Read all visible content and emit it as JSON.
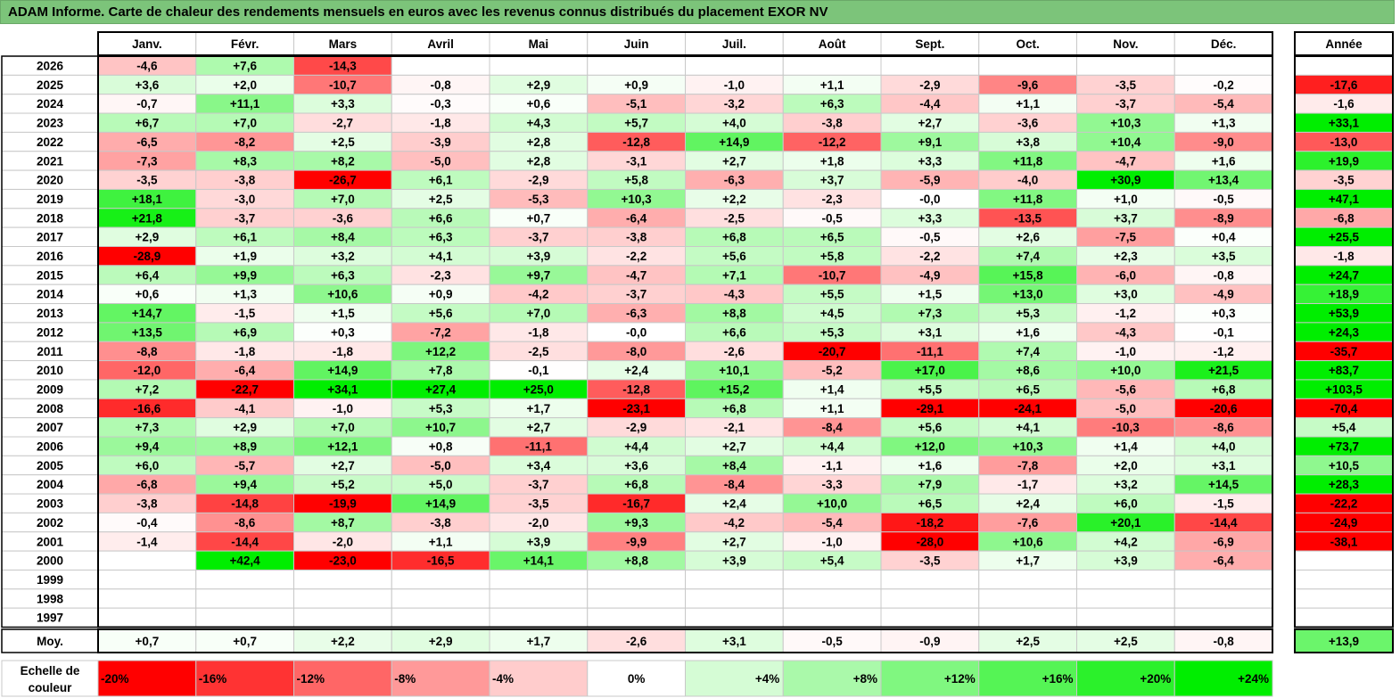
{
  "title": "ADAM Informe. Carte de chaleur des rendements mensuels en euros avec les revenus connus distribués du placement EXOR NV",
  "chart_data": {
    "type": "heatmap",
    "title": "ADAM Informe. Carte de chaleur des rendements mensuels en euros avec les revenus connus distribués du placement EXOR NV",
    "months": [
      "Janv.",
      "Févr.",
      "Mars",
      "Avril",
      "Mai",
      "Juin",
      "Juil.",
      "Août",
      "Sept.",
      "Oct.",
      "Nov.",
      "Déc."
    ],
    "year_header": "Année",
    "avg_label": "Moy.",
    "rows": [
      {
        "year": "2026",
        "values": [
          "-4,6",
          "+7,6",
          "-14,3",
          "",
          "",
          "",
          "",
          "",
          "",
          "",
          "",
          ""
        ],
        "annual": ""
      },
      {
        "year": "2025",
        "values": [
          "+3,6",
          "+2,0",
          "-10,7",
          "-0,8",
          "+2,9",
          "+0,9",
          "-1,0",
          "+1,1",
          "-2,9",
          "-9,6",
          "-3,5",
          "-0,2"
        ],
        "annual": "-17,6"
      },
      {
        "year": "2024",
        "values": [
          "-0,7",
          "+11,1",
          "+3,3",
          "-0,3",
          "+0,6",
          "-5,1",
          "-3,2",
          "+6,3",
          "-4,4",
          "+1,1",
          "-3,7",
          "-5,4"
        ],
        "annual": "-1,6"
      },
      {
        "year": "2023",
        "values": [
          "+6,7",
          "+7,0",
          "-2,7",
          "-1,8",
          "+4,3",
          "+5,7",
          "+4,0",
          "-3,8",
          "+2,7",
          "-3,6",
          "+10,3",
          "+1,3"
        ],
        "annual": "+33,1"
      },
      {
        "year": "2022",
        "values": [
          "-6,5",
          "-8,2",
          "+2,5",
          "-3,9",
          "+2,8",
          "-12,8",
          "+14,9",
          "-12,2",
          "+9,1",
          "+3,8",
          "+10,4",
          "-9,0"
        ],
        "annual": "-13,0"
      },
      {
        "year": "2021",
        "values": [
          "-7,3",
          "+8,3",
          "+8,2",
          "-5,0",
          "+2,8",
          "-3,1",
          "+2,7",
          "+1,8",
          "+3,3",
          "+11,8",
          "-4,7",
          "+1,6"
        ],
        "annual": "+19,9"
      },
      {
        "year": "2020",
        "values": [
          "-3,5",
          "-3,8",
          "-26,7",
          "+6,1",
          "-2,9",
          "+5,8",
          "-6,3",
          "+3,7",
          "-5,9",
          "-4,0",
          "+30,9",
          "+13,4"
        ],
        "annual": "-3,5"
      },
      {
        "year": "2019",
        "values": [
          "+18,1",
          "-3,0",
          "+7,0",
          "+2,5",
          "-5,3",
          "+10,3",
          "+2,2",
          "-2,3",
          "-0,0",
          "+11,8",
          "+1,0",
          "-0,5"
        ],
        "annual": "+47,1"
      },
      {
        "year": "2018",
        "values": [
          "+21,8",
          "-3,7",
          "-3,6",
          "+6,6",
          "+0,7",
          "-6,4",
          "-2,5",
          "-0,5",
          "+3,3",
          "-13,5",
          "+3,7",
          "-8,9"
        ],
        "annual": "-6,8"
      },
      {
        "year": "2017",
        "values": [
          "+2,9",
          "+6,1",
          "+8,4",
          "+6,3",
          "-3,7",
          "-3,8",
          "+6,8",
          "+6,5",
          "-0,5",
          "+2,6",
          "-7,5",
          "+0,4"
        ],
        "annual": "+25,5"
      },
      {
        "year": "2016",
        "values": [
          "-28,9",
          "+1,9",
          "+3,2",
          "+4,1",
          "+3,9",
          "-2,2",
          "+5,6",
          "+5,8",
          "-2,2",
          "+7,4",
          "+2,3",
          "+3,5"
        ],
        "annual": "-1,8"
      },
      {
        "year": "2015",
        "values": [
          "+6,4",
          "+9,9",
          "+6,3",
          "-2,3",
          "+9,7",
          "-4,7",
          "+7,1",
          "-10,7",
          "-4,9",
          "+15,8",
          "-6,0",
          "-0,8"
        ],
        "annual": "+24,7"
      },
      {
        "year": "2014",
        "values": [
          "+0,6",
          "+1,3",
          "+10,6",
          "+0,9",
          "-4,2",
          "-3,7",
          "-4,3",
          "+5,5",
          "+1,5",
          "+13,0",
          "+3,0",
          "-4,9"
        ],
        "annual": "+18,9"
      },
      {
        "year": "2013",
        "values": [
          "+14,7",
          "-1,5",
          "+1,5",
          "+5,6",
          "+7,0",
          "-6,3",
          "+8,8",
          "+4,5",
          "+7,3",
          "+5,3",
          "-1,2",
          "+0,3"
        ],
        "annual": "+53,9"
      },
      {
        "year": "2012",
        "values": [
          "+13,5",
          "+6,9",
          "+0,3",
          "-7,2",
          "-1,8",
          "-0,0",
          "+6,6",
          "+5,3",
          "+3,1",
          "+1,6",
          "-4,3",
          "-0,1"
        ],
        "annual": "+24,3"
      },
      {
        "year": "2011",
        "values": [
          "-8,8",
          "-1,8",
          "-1,8",
          "+12,2",
          "-2,5",
          "-8,0",
          "-2,6",
          "-20,7",
          "-11,1",
          "+7,4",
          "-1,0",
          "-1,2"
        ],
        "annual": "-35,7"
      },
      {
        "year": "2010",
        "values": [
          "-12,0",
          "-6,4",
          "+14,9",
          "+7,8",
          "-0,1",
          "+2,4",
          "+10,1",
          "-5,2",
          "+17,0",
          "+8,6",
          "+10,0",
          "+21,5"
        ],
        "annual": "+83,7"
      },
      {
        "year": "2009",
        "values": [
          "+7,2",
          "-22,7",
          "+34,1",
          "+27,4",
          "+25,0",
          "-12,8",
          "+15,2",
          "+1,4",
          "+5,5",
          "+6,5",
          "-5,6",
          "+6,8"
        ],
        "annual": "+103,5"
      },
      {
        "year": "2008",
        "values": [
          "-16,6",
          "-4,1",
          "-1,0",
          "+5,3",
          "+1,7",
          "-23,1",
          "+6,8",
          "+1,1",
          "-29,1",
          "-24,1",
          "-5,0",
          "-20,6"
        ],
        "annual": "-70,4"
      },
      {
        "year": "2007",
        "values": [
          "+7,3",
          "+2,9",
          "+7,0",
          "+10,7",
          "+2,7",
          "-2,9",
          "-2,1",
          "-8,4",
          "+5,6",
          "+4,1",
          "-10,3",
          "-8,6"
        ],
        "annual": "+5,4"
      },
      {
        "year": "2006",
        "values": [
          "+9,4",
          "+8,9",
          "+12,1",
          "+0,8",
          "-11,1",
          "+4,4",
          "+2,7",
          "+4,4",
          "+12,0",
          "+10,3",
          "+1,4",
          "+4,0"
        ],
        "annual": "+73,7"
      },
      {
        "year": "2005",
        "values": [
          "+6,0",
          "-5,7",
          "+2,7",
          "-5,0",
          "+3,4",
          "+3,6",
          "+8,4",
          "-1,1",
          "+1,6",
          "-7,8",
          "+2,0",
          "+3,1"
        ],
        "annual": "+10,5"
      },
      {
        "year": "2004",
        "values": [
          "-6,8",
          "+9,4",
          "+5,2",
          "+5,0",
          "-3,7",
          "+6,8",
          "-8,4",
          "-3,3",
          "+7,9",
          "-1,7",
          "+3,2",
          "+14,5"
        ],
        "annual": "+28,3"
      },
      {
        "year": "2003",
        "values": [
          "-3,8",
          "-14,8",
          "-19,9",
          "+14,9",
          "-3,5",
          "-16,7",
          "+2,4",
          "+10,0",
          "+6,5",
          "+2,4",
          "+6,0",
          "-1,5"
        ],
        "annual": "-22,2"
      },
      {
        "year": "2002",
        "values": [
          "-0,4",
          "-8,6",
          "+8,7",
          "-3,8",
          "-2,0",
          "+9,3",
          "-4,2",
          "-5,4",
          "-18,2",
          "-7,6",
          "+20,1",
          "-14,4"
        ],
        "annual": "-24,9"
      },
      {
        "year": "2001",
        "values": [
          "-1,4",
          "-14,4",
          "-2,0",
          "+1,1",
          "+3,9",
          "-9,9",
          "+2,7",
          "-1,0",
          "-28,0",
          "+10,6",
          "+4,2",
          "-6,9"
        ],
        "annual": "-38,1"
      },
      {
        "year": "2000",
        "values": [
          "",
          "+42,4",
          "-23,0",
          "-16,5",
          "+14,1",
          "+8,8",
          "+3,9",
          "+5,4",
          "-3,5",
          "+1,7",
          "+3,9",
          "-6,4"
        ],
        "annual": ""
      },
      {
        "year": "1999",
        "values": [
          "",
          "",
          "",
          "",
          "",
          "",
          "",
          "",
          "",
          "",
          "",
          ""
        ],
        "annual": ""
      },
      {
        "year": "1998",
        "values": [
          "",
          "",
          "",
          "",
          "",
          "",
          "",
          "",
          "",
          "",
          "",
          ""
        ],
        "annual": ""
      },
      {
        "year": "1997",
        "values": [
          "",
          "",
          "",
          "",
          "",
          "",
          "",
          "",
          "",
          "",
          "",
          ""
        ],
        "annual": ""
      }
    ],
    "averages": [
      "+0,7",
      "+0,7",
      "+2,2",
      "+2,9",
      "+1,7",
      "-2,6",
      "+3,1",
      "-0,5",
      "-0,9",
      "+2,5",
      "+2,5",
      "-0,8"
    ],
    "annual_average": "+13,9",
    "scale_label_line1": "Echelle de",
    "scale_label_line2": "couleur",
    "scale": [
      {
        "label": "-20%",
        "value": -20
      },
      {
        "label": "-16%",
        "value": -16
      },
      {
        "label": "-12%",
        "value": -12
      },
      {
        "label": "-8%",
        "value": -8
      },
      {
        "label": "-4%",
        "value": -4
      },
      {
        "label": "0%",
        "value": 0
      },
      {
        "label": "+4%",
        "value": 4
      },
      {
        "label": "+8%",
        "value": 8
      },
      {
        "label": "+12%",
        "value": 12
      },
      {
        "label": "+16%",
        "value": 16
      },
      {
        "label": "+20%",
        "value": 20
      },
      {
        "label": "+24%",
        "value": 24
      }
    ],
    "colors": {
      "neg_full": "#ff0000",
      "pos_full": "#00ee00",
      "neutral": "#ffffff",
      "title_bg": "#7cc47a",
      "grid": "#c8c8c8",
      "frame": "#000000"
    }
  }
}
